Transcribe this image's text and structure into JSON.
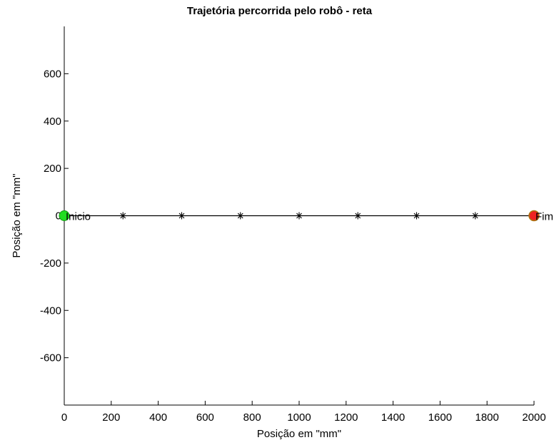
{
  "chart_data": {
    "type": "line",
    "title": "Trajetória percorrida pelo robô - reta",
    "xlabel": "Posição em \"mm\"",
    "ylabel": "Posição em \"mm\"",
    "xlim": [
      0,
      2000
    ],
    "ylim": [
      -800,
      800
    ],
    "x_ticks": [
      0,
      200,
      400,
      600,
      800,
      1000,
      1200,
      1400,
      1600,
      1800,
      2000
    ],
    "y_ticks": [
      -600,
      -400,
      -200,
      0,
      200,
      400,
      600
    ],
    "grid": false,
    "series": [
      {
        "x": [
          0,
          250,
          500,
          750,
          1000,
          1250,
          1500,
          1750,
          2000
        ],
        "y": [
          0,
          0,
          0,
          0,
          0,
          0,
          0,
          0,
          0
        ],
        "line_color": "#000000",
        "marker": "asterisk"
      }
    ],
    "start_point": {
      "x": 0,
      "y": 0,
      "label": "Inicio",
      "color": "#22dd22"
    },
    "end_point": {
      "x": 2000,
      "y": 0,
      "label": "Fim",
      "color": "#ee2222"
    }
  }
}
